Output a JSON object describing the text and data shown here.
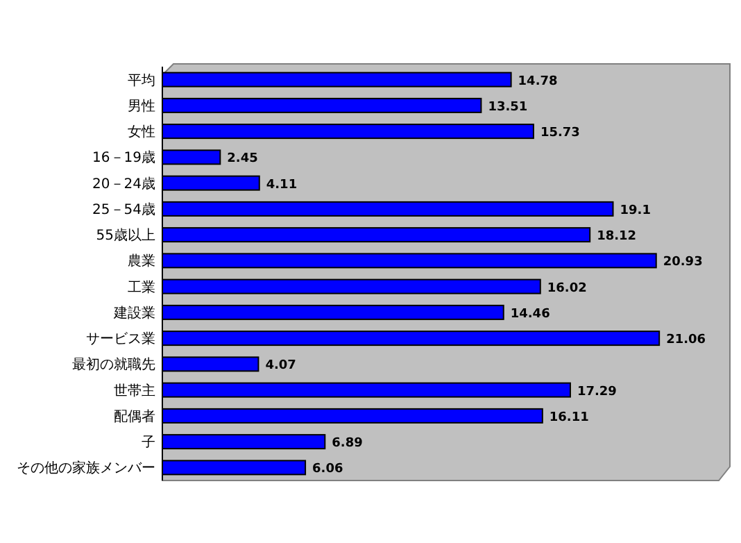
{
  "chart_data": {
    "type": "bar",
    "orientation": "horizontal",
    "color": "#0000ff",
    "data_labels": true,
    "categories": [
      "平均",
      "男性",
      "女性",
      "16－19歳",
      "20－24歳",
      "25－54歳",
      "55歳以上",
      "農業",
      "工業",
      "建設業",
      "サービス業",
      "最初の就職先",
      "世帯主",
      "配偶者",
      "子",
      "その他の家族メンバー"
    ],
    "values": [
      14.78,
      13.51,
      15.73,
      2.45,
      4.11,
      19.1,
      18.12,
      20.93,
      16.02,
      14.46,
      21.06,
      4.07,
      17.29,
      16.11,
      6.89,
      6.06
    ]
  }
}
